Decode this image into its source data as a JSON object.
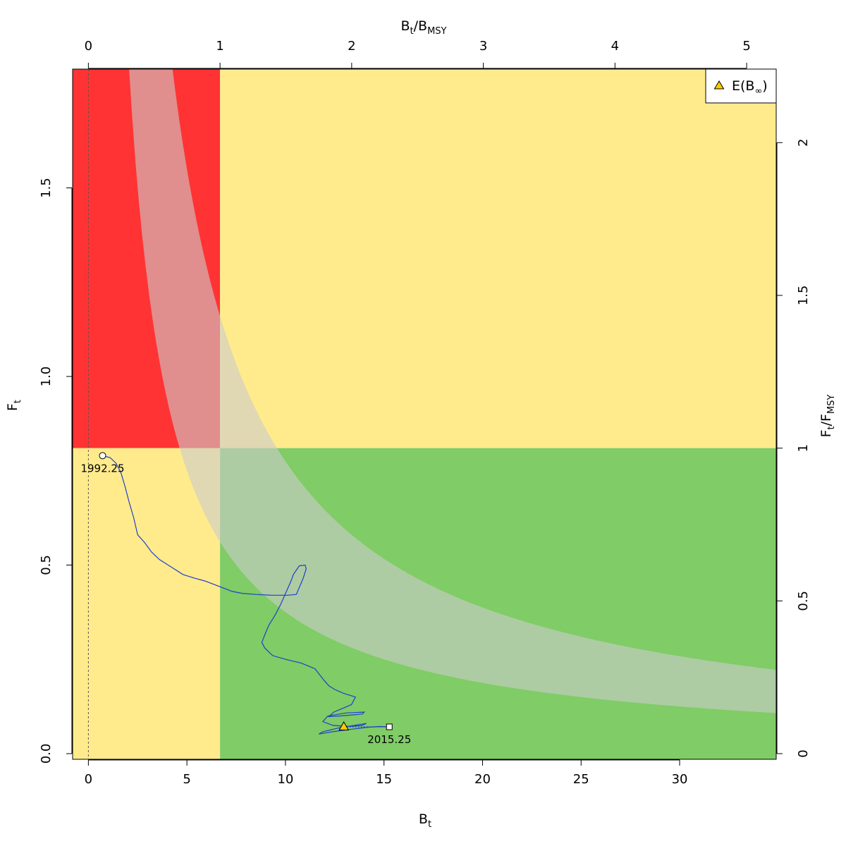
{
  "chart_data": {
    "type": "line",
    "xlabel": "B",
    "xlabel_sub": "t",
    "ylabel": "F",
    "ylabel_sub": "t",
    "top_label": {
      "a": "B",
      "a_sub": "t",
      "sep": "/",
      "b": "B",
      "b_sub": "MSY"
    },
    "right_label": {
      "a": "F",
      "a_sub": "t",
      "sep": "/",
      "b": "F",
      "b_sub": "MSY"
    },
    "xlim": [
      -0.8,
      34.9
    ],
    "ylim": [
      -0.015,
      1.815
    ],
    "x_ticks": [
      "0",
      "5",
      "10",
      "15",
      "20",
      "25",
      "30"
    ],
    "y_ticks": [
      "0.0",
      "0.5",
      "1.0",
      "1.5"
    ],
    "top_ticks": [
      "0",
      "1",
      "2",
      "3",
      "4",
      "5"
    ],
    "right_ticks": [
      "0",
      "0.5",
      "1",
      "1.5",
      "2"
    ],
    "Bmsy": 6.68,
    "Fmsy": 0.81,
    "colors": {
      "red": "#ff3333",
      "yellow": "#ffeb8c",
      "green": "#80cc66",
      "band": "#cccccc",
      "trajectory": "#1f3fcc",
      "triangle": "#ffcc00"
    },
    "msy_band": {
      "lower_k": 3.75,
      "upper_k": 7.75
    },
    "trajectory": {
      "x": [
        0.72,
        1.1,
        1.4,
        1.65,
        1.85,
        2.05,
        2.3,
        2.5,
        2.85,
        3.2,
        3.6,
        4.2,
        4.8,
        5.4,
        5.9,
        6.3,
        6.8,
        7.3,
        7.8,
        8.5,
        9.3,
        10.1,
        10.55,
        10.9,
        11.05,
        11.0,
        10.7,
        10.4,
        10.3,
        10.05,
        9.75,
        9.45,
        9.15,
        8.95,
        8.8,
        8.95,
        9.35,
        10.0,
        10.8,
        11.5,
        11.95,
        12.2,
        12.5,
        12.95,
        13.55,
        13.35,
        12.9,
        12.45,
        12.2,
        12.8,
        13.9,
        14.0,
        13.1,
        12.15,
        11.9,
        12.4,
        13.2,
        13.9,
        14.1,
        13.5,
        12.7,
        11.9,
        11.7,
        12.4,
        13.4,
        14.2,
        14.8,
        15.27
      ],
      "y": [
        0.79,
        0.785,
        0.77,
        0.745,
        0.71,
        0.67,
        0.625,
        0.58,
        0.56,
        0.535,
        0.515,
        0.495,
        0.475,
        0.465,
        0.458,
        0.45,
        0.44,
        0.43,
        0.425,
        0.422,
        0.42,
        0.42,
        0.422,
        0.465,
        0.49,
        0.5,
        0.498,
        0.475,
        0.46,
        0.43,
        0.395,
        0.365,
        0.34,
        0.315,
        0.295,
        0.28,
        0.26,
        0.25,
        0.24,
        0.225,
        0.195,
        0.18,
        0.17,
        0.16,
        0.15,
        0.13,
        0.12,
        0.11,
        0.098,
        0.1,
        0.105,
        0.11,
        0.108,
        0.1,
        0.085,
        0.075,
        0.072,
        0.075,
        0.08,
        0.075,
        0.068,
        0.058,
        0.052,
        0.058,
        0.065,
        0.07,
        0.072,
        0.071
      ]
    },
    "start_point": {
      "x": 0.72,
      "y": 0.79,
      "label": "1992.25"
    },
    "end_point": {
      "x": 15.27,
      "y": 0.071,
      "label": "2015.25"
    },
    "expected_point": {
      "x": 12.96,
      "y": 0.071
    },
    "legend": {
      "position": "top-right",
      "label": "E(B",
      "label_sub": "∞",
      "label_close": ")"
    }
  }
}
